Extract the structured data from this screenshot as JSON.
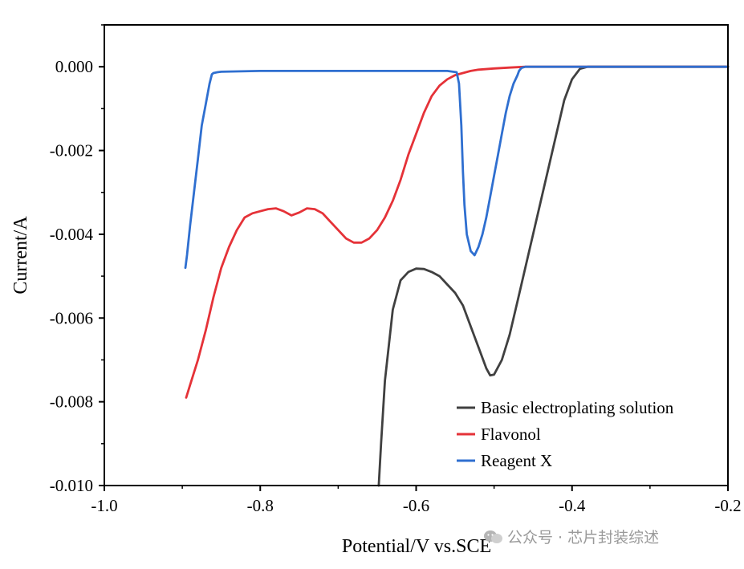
{
  "chart_data": {
    "type": "line",
    "xlabel": "Potential/V vs.SCE",
    "ylabel": "Current/A",
    "xlim": [
      -1.0,
      -0.2
    ],
    "ylim": [
      -0.01,
      0.001
    ],
    "xticks": [
      -1.0,
      -0.8,
      -0.6,
      -0.4,
      -0.2
    ],
    "xtick_labels": [
      "-1.0",
      "-0.8",
      "-0.6",
      "-0.4",
      "-0.2"
    ],
    "yticks": [
      0.0,
      -0.002,
      -0.004,
      -0.006,
      -0.008,
      -0.01
    ],
    "ytick_labels": [
      "0.000",
      "-0.002",
      "-0.004",
      "-0.006",
      "-0.008",
      "-0.010"
    ],
    "legend_position": "bottom-right",
    "series": [
      {
        "name": "Basic electroplating solution",
        "color": "#404040",
        "x": [
          -0.648,
          -0.645,
          -0.64,
          -0.63,
          -0.62,
          -0.61,
          -0.6,
          -0.59,
          -0.58,
          -0.57,
          -0.56,
          -0.55,
          -0.54,
          -0.53,
          -0.52,
          -0.51,
          -0.505,
          -0.5,
          -0.49,
          -0.48,
          -0.47,
          -0.46,
          -0.45,
          -0.44,
          -0.43,
          -0.42,
          -0.41,
          -0.4,
          -0.39,
          -0.38,
          -0.36,
          -0.3,
          -0.2
        ],
        "y": [
          -0.01,
          -0.009,
          -0.0075,
          -0.0058,
          -0.0051,
          -0.0049,
          -0.00482,
          -0.00483,
          -0.0049,
          -0.005,
          -0.0052,
          -0.0054,
          -0.0057,
          -0.0062,
          -0.0067,
          -0.0072,
          -0.00737,
          -0.00735,
          -0.007,
          -0.0064,
          -0.0056,
          -0.0048,
          -0.004,
          -0.0032,
          -0.0024,
          -0.0016,
          -0.0008,
          -0.0003,
          -5e-05,
          0.0,
          0.0,
          0.0,
          0.0
        ]
      },
      {
        "name": "Flavonol",
        "color": "#e53238",
        "x": [
          -0.895,
          -0.89,
          -0.88,
          -0.87,
          -0.86,
          -0.85,
          -0.84,
          -0.83,
          -0.82,
          -0.81,
          -0.8,
          -0.79,
          -0.78,
          -0.77,
          -0.76,
          -0.75,
          -0.74,
          -0.73,
          -0.72,
          -0.71,
          -0.7,
          -0.69,
          -0.68,
          -0.67,
          -0.66,
          -0.65,
          -0.64,
          -0.63,
          -0.62,
          -0.61,
          -0.6,
          -0.59,
          -0.58,
          -0.57,
          -0.56,
          -0.55,
          -0.54,
          -0.53,
          -0.52,
          -0.5,
          -0.48,
          -0.46,
          -0.4,
          -0.2
        ],
        "y": [
          -0.0079,
          -0.0076,
          -0.007,
          -0.0063,
          -0.0055,
          -0.0048,
          -0.0043,
          -0.0039,
          -0.0036,
          -0.0035,
          -0.00345,
          -0.0034,
          -0.00338,
          -0.00345,
          -0.00355,
          -0.00348,
          -0.00338,
          -0.0034,
          -0.0035,
          -0.0037,
          -0.0039,
          -0.0041,
          -0.0042,
          -0.0042,
          -0.0041,
          -0.0039,
          -0.0036,
          -0.0032,
          -0.0027,
          -0.0021,
          -0.0016,
          -0.0011,
          -0.0007,
          -0.00045,
          -0.0003,
          -0.0002,
          -0.00015,
          -0.0001,
          -7e-05,
          -4e-05,
          -2e-05,
          0.0,
          0.0,
          0.0
        ]
      },
      {
        "name": "Reagent X",
        "color": "#2f6fd0",
        "x": [
          -0.896,
          -0.894,
          -0.89,
          -0.885,
          -0.88,
          -0.875,
          -0.87,
          -0.865,
          -0.862,
          -0.86,
          -0.855,
          -0.85,
          -0.8,
          -0.7,
          -0.6,
          -0.56,
          -0.548,
          -0.545,
          -0.542,
          -0.54,
          -0.538,
          -0.535,
          -0.53,
          -0.525,
          -0.52,
          -0.515,
          -0.51,
          -0.505,
          -0.5,
          -0.495,
          -0.49,
          -0.485,
          -0.48,
          -0.475,
          -0.47,
          -0.468,
          -0.465,
          -0.46,
          -0.45,
          -0.4,
          -0.3,
          -0.2
        ],
        "y": [
          -0.0048,
          -0.0045,
          -0.0038,
          -0.003,
          -0.0022,
          -0.0014,
          -0.0009,
          -0.0004,
          -0.00018,
          -0.00015,
          -0.00013,
          -0.00012,
          -0.0001,
          -0.0001,
          -0.0001,
          -0.0001,
          -0.00013,
          -0.0004,
          -0.0014,
          -0.0025,
          -0.0033,
          -0.004,
          -0.0044,
          -0.0045,
          -0.0043,
          -0.004,
          -0.0036,
          -0.0031,
          -0.0026,
          -0.0021,
          -0.0016,
          -0.0011,
          -0.0007,
          -0.0004,
          -0.0002,
          -0.0001,
          -3e-05,
          0.0,
          0.0,
          0.0,
          0.0,
          0.0
        ]
      }
    ]
  },
  "watermark": {
    "icon": "wechat-icon",
    "text": "公众号 · 芯片封装综述"
  }
}
